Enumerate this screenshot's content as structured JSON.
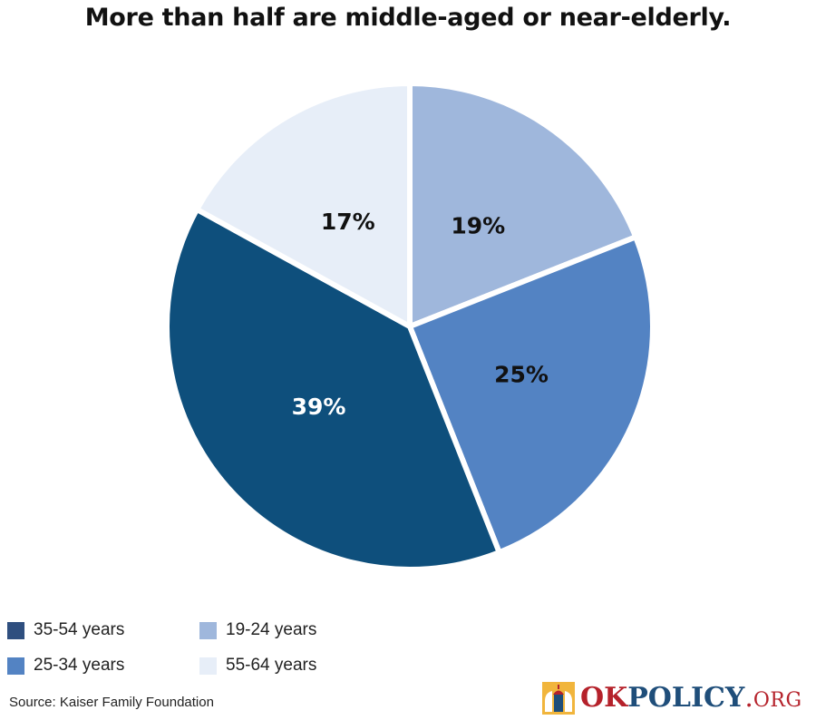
{
  "chart_data": {
    "type": "pie",
    "title": "More than half are middle-aged or near-elderly.",
    "slices": [
      {
        "label": "19-24 years",
        "value": 19,
        "display": "19%",
        "color": "#9fb7dc",
        "text_color": "#111111"
      },
      {
        "label": "25-34 years",
        "value": 25,
        "display": "25%",
        "color": "#5383c3",
        "text_color": "#111111"
      },
      {
        "label": "35-54 years",
        "value": 39,
        "display": "39%",
        "color": "#0e4f7c",
        "text_color": "#ffffff"
      },
      {
        "label": "55-64 years",
        "value": 17,
        "display": "17%",
        "color": "#e7eef8",
        "text_color": "#111111"
      }
    ],
    "legend_placement": "bottom-left",
    "legend": [
      {
        "label": "35-54 years",
        "color": "#2f4f7f"
      },
      {
        "label": "19-24 years",
        "color": "#9fb7dc"
      },
      {
        "label": "25-34 years",
        "color": "#5383c3"
      },
      {
        "label": "55-64 years",
        "color": "#e7eef8"
      }
    ],
    "source": "Source: Kaiser Family Foundation"
  },
  "branding": {
    "logo_ok": "OK",
    "logo_policy": "POLICY",
    "logo_dot": ".",
    "logo_org": "ORG",
    "logo_icon": "capitol-dome-icon"
  }
}
